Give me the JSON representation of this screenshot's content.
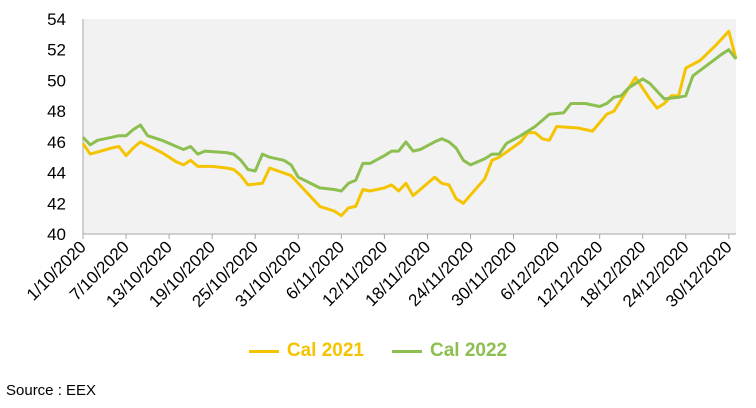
{
  "chart_data": {
    "type": "line",
    "ylim": [
      40,
      54
    ],
    "yticks": [
      40,
      42,
      44,
      46,
      48,
      50,
      52,
      54
    ],
    "xlim": [
      "2020-10-01",
      "2020-12-31"
    ],
    "xticks": [
      "1/10/2020",
      "7/10/2020",
      "13/10/2020",
      "19/10/2020",
      "25/10/2020",
      "31/10/2020",
      "6/11/2020",
      "12/11/2020",
      "18/11/2020",
      "24/11/2020",
      "30/11/2020",
      "6/12/2020",
      "12/12/2020",
      "18/12/2020",
      "24/12/2020",
      "30/12/2020"
    ],
    "grid": false,
    "legend": "bottom",
    "series": [
      {
        "name": "Cal 2021",
        "color": "#f5c400",
        "points": [
          [
            "2020-10-01",
            45.9
          ],
          [
            "2020-10-02",
            45.2
          ],
          [
            "2020-10-05",
            45.6
          ],
          [
            "2020-10-06",
            45.7
          ],
          [
            "2020-10-07",
            45.1
          ],
          [
            "2020-10-08",
            45.6
          ],
          [
            "2020-10-09",
            46.0
          ],
          [
            "2020-10-12",
            45.3
          ],
          [
            "2020-10-13",
            45.0
          ],
          [
            "2020-10-14",
            44.7
          ],
          [
            "2020-10-15",
            44.5
          ],
          [
            "2020-10-16",
            44.8
          ],
          [
            "2020-10-17",
            44.4
          ],
          [
            "2020-10-19",
            44.4
          ],
          [
            "2020-10-21",
            44.3
          ],
          [
            "2020-10-22",
            44.2
          ],
          [
            "2020-10-23",
            43.8
          ],
          [
            "2020-10-24",
            43.2
          ],
          [
            "2020-10-26",
            43.3
          ],
          [
            "2020-10-27",
            44.3
          ],
          [
            "2020-10-30",
            43.8
          ],
          [
            "2020-11-02",
            42.3
          ],
          [
            "2020-11-03",
            41.8
          ],
          [
            "2020-11-05",
            41.5
          ],
          [
            "2020-11-06",
            41.2
          ],
          [
            "2020-11-07",
            41.7
          ],
          [
            "2020-11-08",
            41.8
          ],
          [
            "2020-11-09",
            42.9
          ],
          [
            "2020-11-10",
            42.8
          ],
          [
            "2020-11-12",
            43.0
          ],
          [
            "2020-11-13",
            43.2
          ],
          [
            "2020-11-14",
            42.8
          ],
          [
            "2020-11-15",
            43.3
          ],
          [
            "2020-11-16",
            42.5
          ],
          [
            "2020-11-17",
            42.9
          ],
          [
            "2020-11-19",
            43.7
          ],
          [
            "2020-11-20",
            43.3
          ],
          [
            "2020-11-21",
            43.2
          ],
          [
            "2020-11-22",
            42.3
          ],
          [
            "2020-11-23",
            42.0
          ],
          [
            "2020-11-26",
            43.6
          ],
          [
            "2020-11-27",
            44.8
          ],
          [
            "2020-11-28",
            45.0
          ],
          [
            "2020-12-01",
            46.0
          ],
          [
            "2020-12-02",
            46.6
          ],
          [
            "2020-12-03",
            46.6
          ],
          [
            "2020-12-04",
            46.2
          ],
          [
            "2020-12-05",
            46.1
          ],
          [
            "2020-12-06",
            47.0
          ],
          [
            "2020-12-09",
            46.9
          ],
          [
            "2020-12-11",
            46.7
          ],
          [
            "2020-12-13",
            47.8
          ],
          [
            "2020-12-14",
            48.0
          ],
          [
            "2020-12-17",
            50.2
          ],
          [
            "2020-12-19",
            48.8
          ],
          [
            "2020-12-20",
            48.2
          ],
          [
            "2020-12-21",
            48.5
          ],
          [
            "2020-12-22",
            49.0
          ],
          [
            "2020-12-23",
            49.0
          ],
          [
            "2020-12-24",
            50.8
          ],
          [
            "2020-12-26",
            51.3
          ],
          [
            "2020-12-28",
            52.2
          ],
          [
            "2020-12-30",
            53.2
          ],
          [
            "2020-12-31",
            51.4
          ]
        ]
      },
      {
        "name": "Cal 2022",
        "color": "#8cbf4f",
        "points": [
          [
            "2020-10-01",
            46.3
          ],
          [
            "2020-10-02",
            45.8
          ],
          [
            "2020-10-03",
            46.1
          ],
          [
            "2020-10-05",
            46.3
          ],
          [
            "2020-10-06",
            46.4
          ],
          [
            "2020-10-07",
            46.4
          ],
          [
            "2020-10-08",
            46.8
          ],
          [
            "2020-10-09",
            47.1
          ],
          [
            "2020-10-10",
            46.4
          ],
          [
            "2020-10-12",
            46.1
          ],
          [
            "2020-10-13",
            45.9
          ],
          [
            "2020-10-14",
            45.7
          ],
          [
            "2020-10-15",
            45.5
          ],
          [
            "2020-10-16",
            45.7
          ],
          [
            "2020-10-17",
            45.2
          ],
          [
            "2020-10-18",
            45.4
          ],
          [
            "2020-10-21",
            45.3
          ],
          [
            "2020-10-22",
            45.2
          ],
          [
            "2020-10-23",
            44.8
          ],
          [
            "2020-10-24",
            44.2
          ],
          [
            "2020-10-25",
            44.1
          ],
          [
            "2020-10-26",
            45.2
          ],
          [
            "2020-10-27",
            45.0
          ],
          [
            "2020-10-29",
            44.8
          ],
          [
            "2020-10-30",
            44.5
          ],
          [
            "2020-10-31",
            43.7
          ],
          [
            "2020-11-03",
            43.0
          ],
          [
            "2020-11-05",
            42.9
          ],
          [
            "2020-11-06",
            42.8
          ],
          [
            "2020-11-07",
            43.3
          ],
          [
            "2020-11-08",
            43.5
          ],
          [
            "2020-11-09",
            44.6
          ],
          [
            "2020-11-10",
            44.6
          ],
          [
            "2020-11-12",
            45.1
          ],
          [
            "2020-11-13",
            45.4
          ],
          [
            "2020-11-14",
            45.4
          ],
          [
            "2020-11-15",
            46.0
          ],
          [
            "2020-11-16",
            45.4
          ],
          [
            "2020-11-17",
            45.5
          ],
          [
            "2020-11-19",
            46.0
          ],
          [
            "2020-11-20",
            46.2
          ],
          [
            "2020-11-21",
            46.0
          ],
          [
            "2020-11-22",
            45.6
          ],
          [
            "2020-11-23",
            44.8
          ],
          [
            "2020-11-24",
            44.5
          ],
          [
            "2020-11-26",
            44.9
          ],
          [
            "2020-11-27",
            45.2
          ],
          [
            "2020-11-28",
            45.2
          ],
          [
            "2020-11-29",
            45.9
          ],
          [
            "2020-12-01",
            46.4
          ],
          [
            "2020-12-03",
            47.0
          ],
          [
            "2020-12-04",
            47.4
          ],
          [
            "2020-12-05",
            47.8
          ],
          [
            "2020-12-07",
            47.9
          ],
          [
            "2020-12-08",
            48.5
          ],
          [
            "2020-12-10",
            48.5
          ],
          [
            "2020-12-11",
            48.4
          ],
          [
            "2020-12-12",
            48.3
          ],
          [
            "2020-12-13",
            48.5
          ],
          [
            "2020-12-14",
            48.9
          ],
          [
            "2020-12-15",
            49.0
          ],
          [
            "2020-12-16",
            49.5
          ],
          [
            "2020-12-18",
            50.1
          ],
          [
            "2020-12-19",
            49.8
          ],
          [
            "2020-12-21",
            48.8
          ],
          [
            "2020-12-23",
            48.9
          ],
          [
            "2020-12-24",
            49.0
          ],
          [
            "2020-12-25",
            50.3
          ],
          [
            "2020-12-27",
            51.0
          ],
          [
            "2020-12-29",
            51.7
          ],
          [
            "2020-12-30",
            52.0
          ],
          [
            "2020-12-31",
            51.4
          ]
        ]
      }
    ]
  },
  "source": "Source : EEX"
}
